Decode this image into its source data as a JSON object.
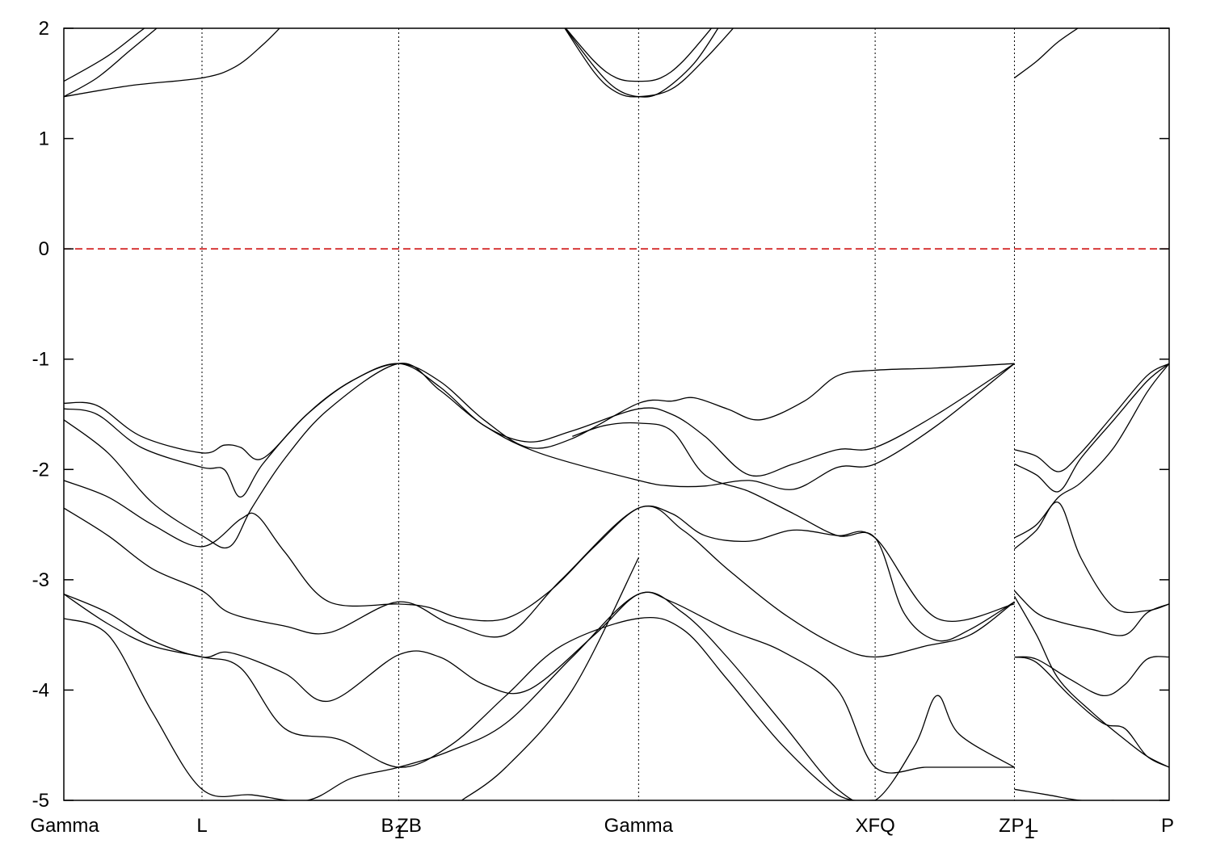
{
  "chart_data": {
    "type": "line",
    "title": "",
    "xlabel": "",
    "ylabel": "",
    "ylim": [
      -5,
      2
    ],
    "yticks": [
      -5,
      -4,
      -3,
      -2,
      -1,
      0,
      1,
      2
    ],
    "grid": "vertical dotted lines at high-symmetry points",
    "fermi_level": {
      "value": 0,
      "color": "#cc0000",
      "style": "dashed"
    },
    "kpoint_labels": [
      {
        "label": "Gamma",
        "x": 0.0
      },
      {
        "label": "L",
        "x": 1.25
      },
      {
        "label": "B",
        "sub": "1",
        "x": 3.03
      },
      {
        "label": "ZB",
        "x": 3.03
      },
      {
        "label": "Gamma",
        "x": 5.2
      },
      {
        "label": "XFQ",
        "x": 7.34
      },
      {
        "label": "Z",
        "x": 8.6
      },
      {
        "label": "P",
        "sub": "1",
        "x": 8.6
      },
      {
        "label": "L",
        "x": 8.6
      },
      {
        "label": "P",
        "x": 10.0
      }
    ],
    "xlim": [
      0,
      10
    ],
    "series": [
      {
        "x": [
          0,
          0.4,
          0.8,
          1.25,
          1.6,
          2.0
        ],
        "y": [
          1.52,
          1.75,
          2.05,
          2.3,
          2.4,
          2.5
        ]
      },
      {
        "x": [
          0,
          0.3,
          0.6,
          0.9
        ],
        "y": [
          1.38,
          1.55,
          1.8,
          2.05
        ]
      },
      {
        "x": [
          0,
          0.6,
          1.25,
          1.55,
          1.8,
          2.0
        ],
        "y": [
          1.38,
          1.48,
          1.55,
          1.65,
          1.85,
          2.05
        ]
      },
      {
        "x": [
          4.5,
          4.8,
          5.0,
          5.2,
          5.4,
          5.6,
          5.9
        ],
        "y": [
          2.05,
          1.7,
          1.55,
          1.52,
          1.55,
          1.7,
          2.05
        ]
      },
      {
        "x": [
          4.5,
          4.8,
          5.0,
          5.2,
          5.4,
          5.7,
          5.95
        ],
        "y": [
          2.05,
          1.65,
          1.45,
          1.38,
          1.42,
          1.68,
          2.05
        ]
      },
      {
        "x": [
          4.5,
          4.8,
          5.0,
          5.2,
          5.5,
          5.8,
          6.1
        ],
        "y": [
          2.05,
          1.6,
          1.42,
          1.38,
          1.45,
          1.72,
          2.05
        ]
      },
      {
        "x": [
          8.6,
          8.8,
          9.0,
          9.25
        ],
        "y": [
          1.55,
          1.7,
          1.88,
          2.05
        ]
      },
      {
        "x": [
          0,
          0.3,
          0.7,
          1.25,
          1.45,
          1.6,
          1.8,
          2.2,
          2.6,
          3.03,
          3.4,
          3.8,
          4.2,
          4.6,
          5.2,
          5.5,
          5.7,
          6.0,
          6.3,
          6.7,
          7.0,
          7.34,
          7.9,
          8.6
        ],
        "y": [
          -1.4,
          -1.42,
          -1.7,
          -1.85,
          -1.78,
          -1.8,
          -1.9,
          -1.5,
          -1.2,
          -1.04,
          -1.2,
          -1.55,
          -1.8,
          -1.72,
          -1.4,
          -1.38,
          -1.35,
          -1.45,
          -1.55,
          -1.38,
          -1.15,
          -1.1,
          -1.08,
          -1.04
        ]
      },
      {
        "x": [
          0,
          0.3,
          0.7,
          1.25,
          1.45,
          1.6,
          1.8,
          2.2,
          2.6,
          3.03,
          3.4,
          3.8,
          4.2,
          4.6,
          5.2,
          5.5,
          5.8,
          6.2,
          6.6,
          7.0,
          7.34,
          7.9,
          8.6
        ],
        "y": [
          -1.45,
          -1.5,
          -1.8,
          -1.98,
          -2.0,
          -2.25,
          -1.95,
          -1.5,
          -1.2,
          -1.04,
          -1.25,
          -1.6,
          -1.75,
          -1.65,
          -1.45,
          -1.5,
          -1.7,
          -2.05,
          -1.95,
          -1.82,
          -1.8,
          -1.5,
          -1.04
        ]
      },
      {
        "x": [
          0,
          0.4,
          0.8,
          1.25,
          1.5,
          1.7,
          2.0,
          2.4,
          3.03,
          3.4,
          3.8,
          4.3,
          5.2,
          5.5,
          5.8,
          6.2,
          6.6,
          7.0,
          7.34,
          7.9,
          8.6
        ],
        "y": [
          -1.55,
          -1.85,
          -2.3,
          -2.6,
          -2.7,
          -2.35,
          -1.9,
          -1.45,
          -1.04,
          -1.28,
          -1.6,
          -1.85,
          -2.1,
          -2.15,
          -2.15,
          -2.1,
          -2.18,
          -1.98,
          -1.95,
          -1.6,
          -1.04
        ]
      },
      {
        "x": [
          0,
          0.4,
          0.8,
          1.25,
          1.6,
          1.75,
          2.0,
          2.4,
          3.03,
          3.3,
          3.6,
          4.0,
          4.4,
          4.8,
          5.2,
          5.5,
          5.8,
          6.2,
          6.6,
          7.0,
          7.34,
          7.9,
          8.6
        ],
        "y": [
          -2.1,
          -2.25,
          -2.5,
          -2.7,
          -2.45,
          -2.42,
          -2.75,
          -3.2,
          -3.22,
          -3.25,
          -3.35,
          -3.35,
          -3.1,
          -2.7,
          -2.35,
          -2.4,
          -2.6,
          -2.65,
          -2.55,
          -2.6,
          -2.62,
          -3.35,
          -3.22
        ]
      },
      {
        "x": [
          0,
          0.4,
          0.8,
          1.25,
          1.5,
          2.0,
          2.4,
          3.03,
          3.5,
          4.0,
          4.5,
          5.2,
          5.6,
          6.0,
          6.5,
          7.0,
          7.34,
          7.8,
          8.2,
          8.6
        ],
        "y": [
          -2.35,
          -2.6,
          -2.9,
          -3.1,
          -3.3,
          -3.42,
          -3.48,
          -3.2,
          -3.4,
          -3.5,
          -3.0,
          -2.35,
          -2.55,
          -2.9,
          -3.3,
          -3.6,
          -3.7,
          -3.6,
          -3.5,
          -3.2
        ]
      },
      {
        "x": [
          0,
          0.4,
          0.8,
          1.25,
          1.5,
          2.0,
          2.4,
          3.03,
          3.4,
          3.8,
          4.2,
          4.8,
          5.2,
          5.5,
          6.0,
          6.5,
          7.0,
          7.34,
          7.8,
          8.2,
          8.6
        ],
        "y": [
          -3.13,
          -3.3,
          -3.55,
          -3.7,
          -3.66,
          -3.85,
          -4.1,
          -3.68,
          -3.7,
          -3.95,
          -4.0,
          -3.5,
          -3.13,
          -3.2,
          -3.45,
          -3.65,
          -4.0,
          -4.7,
          -4.7,
          -4.7,
          -4.7
        ]
      },
      {
        "x": [
          0,
          0.4,
          0.8,
          1.25,
          1.7,
          2.2,
          2.6,
          3.03,
          3.5,
          4.0,
          4.6,
          5.2,
          5.6,
          6.0,
          6.5,
          7.0,
          7.34,
          7.7,
          7.9,
          8.1,
          8.6
        ],
        "y": [
          -3.35,
          -3.5,
          -4.2,
          -4.9,
          -4.95,
          -5.0,
          -4.8,
          -4.7,
          -4.55,
          -4.3,
          -3.7,
          -3.13,
          -3.3,
          -3.7,
          -4.3,
          -4.9,
          -5.0,
          -4.5,
          -4.05,
          -4.4,
          -4.7
        ]
      },
      {
        "x": [
          0,
          0.4,
          0.8,
          1.25,
          1.6,
          2.0,
          2.5,
          3.03,
          3.5,
          4.0,
          4.5,
          5.2,
          5.6,
          6.0,
          6.5,
          7.0,
          7.34
        ],
        "y": [
          -3.13,
          -3.4,
          -3.6,
          -3.7,
          -3.8,
          -4.35,
          -4.45,
          -4.7,
          -4.5,
          -4.05,
          -3.6,
          -3.35,
          -3.45,
          -3.9,
          -4.5,
          -4.95,
          -5.0
        ]
      },
      {
        "x": [
          3.6,
          4.0,
          4.6,
          5.2
        ],
        "y": [
          -5.0,
          -4.7,
          -4.0,
          -2.8
        ]
      },
      {
        "x": [
          4.6,
          4.9,
          5.2,
          5.5,
          5.8,
          6.2,
          6.6,
          7.0,
          7.34,
          7.6,
          7.9,
          8.2,
          8.6
        ],
        "y": [
          -1.7,
          -1.6,
          -1.58,
          -1.65,
          -2.05,
          -2.2,
          -2.4,
          -2.6,
          -2.62,
          -3.3,
          -3.55,
          -3.45,
          -3.2
        ]
      },
      {
        "x": [
          8.6,
          8.8,
          9.0,
          9.2,
          9.5,
          9.8,
          10.0
        ],
        "y": [
          -1.95,
          -2.05,
          -2.2,
          -1.9,
          -1.55,
          -1.2,
          -1.04
        ]
      },
      {
        "x": [
          8.6,
          8.8,
          9.0,
          9.2,
          9.5,
          9.8,
          10.0
        ],
        "y": [
          -1.82,
          -1.88,
          -2.02,
          -1.85,
          -1.5,
          -1.15,
          -1.04
        ]
      },
      {
        "x": [
          8.6,
          8.8,
          9.0,
          9.2,
          9.5,
          9.8,
          10.0
        ],
        "y": [
          -2.62,
          -2.5,
          -2.25,
          -2.12,
          -1.8,
          -1.3,
          -1.04
        ]
      },
      {
        "x": [
          8.6,
          8.8,
          9.0,
          9.2,
          9.5,
          9.8,
          10.0
        ],
        "y": [
          -2.72,
          -2.55,
          -2.3,
          -2.8,
          -3.25,
          -3.28,
          -3.22
        ]
      },
      {
        "x": [
          8.6,
          8.8,
          9.0,
          9.3,
          9.6,
          9.8,
          10.0
        ],
        "y": [
          -3.1,
          -3.3,
          -3.38,
          -3.45,
          -3.5,
          -3.3,
          -3.22
        ]
      },
      {
        "x": [
          8.6,
          8.8,
          9.1,
          9.4,
          9.6,
          9.8,
          10.0
        ],
        "y": [
          -3.7,
          -3.72,
          -3.9,
          -4.05,
          -3.95,
          -3.72,
          -3.7
        ]
      },
      {
        "x": [
          8.6,
          8.8,
          9.1,
          9.4,
          9.6,
          9.8,
          10.0
        ],
        "y": [
          -3.7,
          -3.75,
          -4.05,
          -4.3,
          -4.35,
          -4.6,
          -4.7
        ]
      },
      {
        "x": [
          8.6,
          8.8,
          9.0,
          9.3,
          9.6,
          9.8,
          10.0
        ],
        "y": [
          -3.15,
          -3.5,
          -3.9,
          -4.2,
          -4.45,
          -4.6,
          -4.7
        ]
      },
      {
        "x": [
          8.6,
          8.9,
          9.2,
          9.5
        ],
        "y": [
          -4.9,
          -4.95,
          -5.0,
          -5.0
        ]
      }
    ]
  }
}
